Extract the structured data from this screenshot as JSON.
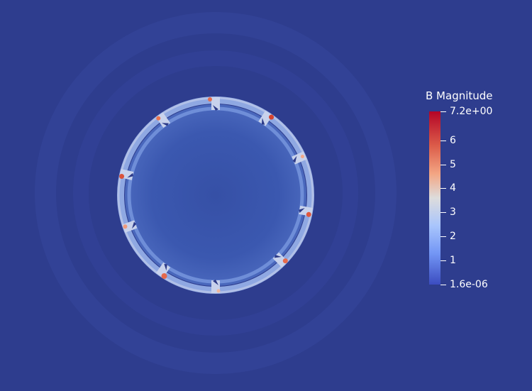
{
  "scene": {
    "background_color": "#2e3d8e",
    "field_name": "B Magnitude"
  },
  "legend": {
    "title": "B Magnitude",
    "max_label": "7.2e+00",
    "min_label": "1.6e-06",
    "range": [
      1.6e-06,
      7.2
    ],
    "colormap": "Cool to Warm",
    "colors": {
      "high": "#b40426",
      "mid": "#dddcdc",
      "low": "#3b4cc0"
    },
    "ticks": [
      {
        "label": "7.2e+00",
        "value": 7.2
      },
      {
        "label": "6",
        "value": 6
      },
      {
        "label": "5",
        "value": 5
      },
      {
        "label": "4",
        "value": 4
      },
      {
        "label": "3",
        "value": 3
      },
      {
        "label": "2",
        "value": 2
      },
      {
        "label": "1",
        "value": 1
      },
      {
        "label": "1.6e-06",
        "value": 1.6e-06
      }
    ]
  }
}
